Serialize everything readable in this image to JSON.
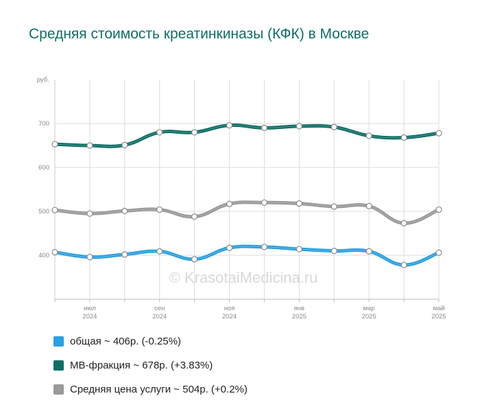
{
  "title": "Средняя стоимость креатинкиназы (КФК) в Москве",
  "watermark": "© KrasotaiMedicina.ru",
  "chart_data": {
    "type": "line",
    "title": "Средняя стоимость креатинкиназы (КФК) в Москве",
    "ylabel": "руб.",
    "ylim": [
      300,
      800
    ],
    "yticks": [
      400,
      500,
      600,
      700
    ],
    "grid": true,
    "legend_position": "bottom",
    "x_tick_labels": [
      {
        "index": 1,
        "month": "июл",
        "year": "2024"
      },
      {
        "index": 3,
        "month": "сен",
        "year": "2024"
      },
      {
        "index": 5,
        "month": "ноя",
        "year": "2024"
      },
      {
        "index": 7,
        "month": "янв",
        "year": "2025"
      },
      {
        "index": 9,
        "month": "мар",
        "year": "2025"
      },
      {
        "index": 11,
        "month": "май",
        "year": "2025"
      }
    ],
    "x": [
      "2024-06",
      "2024-07",
      "2024-08",
      "2024-09",
      "2024-10",
      "2024-11",
      "2024-12",
      "2025-01",
      "2025-02",
      "2025-03",
      "2025-04",
      "2025-05"
    ],
    "series": [
      {
        "key": "avg",
        "color": "#999999",
        "values": [
          503,
          495,
          501,
          504,
          488,
          517,
          520,
          518,
          511,
          512,
          473,
          504
        ]
      },
      {
        "key": "mb",
        "color": "#0e6e66",
        "values": [
          653,
          650,
          651,
          680,
          680,
          696,
          690,
          694,
          692,
          672,
          668,
          678
        ]
      },
      {
        "key": "total",
        "color": "#29a0e0",
        "values": [
          407,
          396,
          402,
          409,
          391,
          417,
          419,
          414,
          410,
          409,
          378,
          406
        ]
      }
    ]
  },
  "legend": [
    {
      "label": "общая ~ 406р. (-0.25%)",
      "color": "#29a0e0"
    },
    {
      "label": "МВ-фракция ~ 678р. (+3.83%)",
      "color": "#0e6e66"
    },
    {
      "label": "Средняя цена услуги ~ 504р. (+0.2%)",
      "color": "#999999"
    }
  ]
}
